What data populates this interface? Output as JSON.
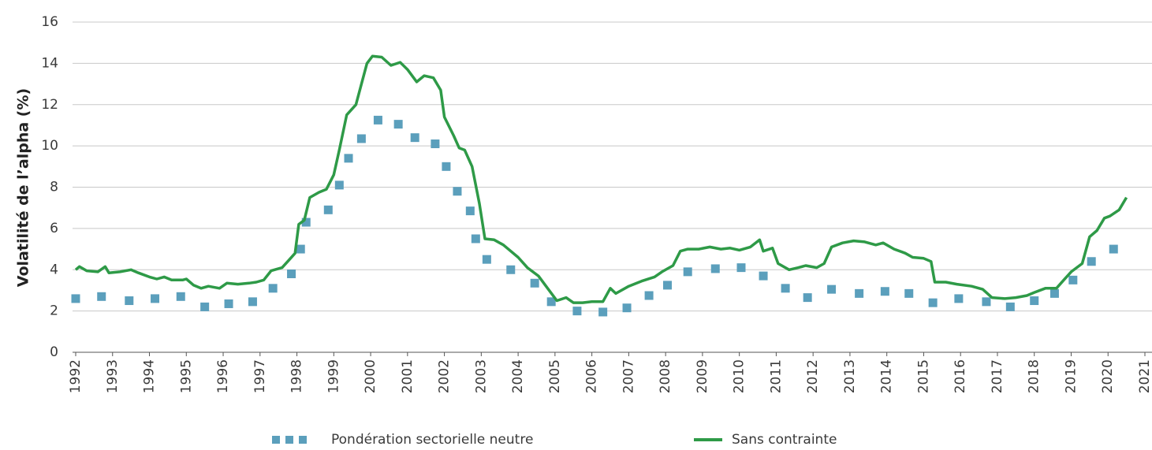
{
  "chart_data": {
    "type": "line",
    "y_label": "Volatilité de l’alpha (%)",
    "xlim": [
      1992,
      2021
    ],
    "xticks": [
      1992,
      1993,
      1994,
      1995,
      1996,
      1997,
      1998,
      1999,
      2000,
      2001,
      2002,
      2003,
      2004,
      2005,
      2006,
      2007,
      2008,
      2009,
      2010,
      2011,
      2012,
      2013,
      2014,
      2015,
      2016,
      2017,
      2018,
      2019,
      2020,
      2021
    ],
    "ylim": [
      0,
      16
    ],
    "yticks": [
      0,
      2,
      4,
      6,
      8,
      10,
      12,
      14,
      16
    ],
    "grid": true,
    "legend": "bottom",
    "series": [
      {
        "name": "Pondération sectorielle neutre",
        "color": "#5b9fbc",
        "mark": "square",
        "x": [
          1992.0,
          1992.7,
          1993.45,
          1994.15,
          1994.85,
          1995.5,
          1996.15,
          1996.8,
          1997.35,
          1997.85,
          1998.1,
          1998.25,
          1998.85,
          1999.15,
          1999.4,
          1999.75,
          2000.2,
          2000.75,
          2001.2,
          2001.75,
          2002.05,
          2002.35,
          2002.7,
          2002.85,
          2003.15,
          2003.8,
          2004.45,
          2004.9,
          2005.6,
          2006.3,
          2006.95,
          2007.55,
          2008.05,
          2008.6,
          2009.35,
          2010.05,
          2010.65,
          2011.25,
          2011.85,
          2012.5,
          2013.25,
          2013.95,
          2014.6,
          2015.25,
          2015.95,
          2016.7,
          2017.35,
          2018.0,
          2018.55,
          2019.05,
          2019.55,
          2020.15
        ],
        "values": [
          2.6,
          2.7,
          2.5,
          2.6,
          2.7,
          2.2,
          2.35,
          2.45,
          3.1,
          3.8,
          5.0,
          6.3,
          6.9,
          8.1,
          9.4,
          10.35,
          11.25,
          11.05,
          10.4,
          10.1,
          9.0,
          7.8,
          6.85,
          5.5,
          4.5,
          4.0,
          3.35,
          2.45,
          2.0,
          1.95,
          2.15,
          2.75,
          3.25,
          3.9,
          4.05,
          4.1,
          3.7,
          3.1,
          2.65,
          3.05,
          2.85,
          2.95,
          2.85,
          2.4,
          2.6,
          2.45,
          2.2,
          2.5,
          2.85,
          3.5,
          4.4,
          5.0
        ]
      },
      {
        "name": "Sans contrainte",
        "color": "#2e9a47",
        "mark": "line",
        "x": [
          1992.0,
          1992.1,
          1992.3,
          1992.6,
          1992.8,
          1992.9,
          1993.2,
          1993.5,
          1993.7,
          1994.0,
          1994.2,
          1994.4,
          1994.6,
          1994.9,
          1995.0,
          1995.2,
          1995.4,
          1995.6,
          1995.9,
          1996.1,
          1996.4,
          1996.7,
          1996.9,
          1997.1,
          1997.3,
          1997.6,
          1997.8,
          1997.95,
          1998.05,
          1998.2,
          1998.35,
          1998.6,
          1998.8,
          1999.0,
          1999.15,
          1999.35,
          1999.6,
          1999.75,
          1999.9,
          2000.05,
          2000.3,
          2000.55,
          2000.8,
          2001.0,
          2001.25,
          2001.45,
          2001.7,
          2001.9,
          2002.0,
          2002.25,
          2002.4,
          2002.55,
          2002.75,
          2002.95,
          2003.1,
          2003.35,
          2003.6,
          2003.8,
          2004.0,
          2004.25,
          2004.55,
          2004.8,
          2005.05,
          2005.3,
          2005.5,
          2005.75,
          2006.0,
          2006.3,
          2006.5,
          2006.65,
          2007.0,
          2007.35,
          2007.7,
          2007.9,
          2008.2,
          2008.4,
          2008.6,
          2008.9,
          2009.2,
          2009.5,
          2009.75,
          2010.0,
          2010.3,
          2010.55,
          2010.65,
          2010.9,
          2011.05,
          2011.35,
          2011.6,
          2011.8,
          2012.1,
          2012.3,
          2012.5,
          2012.8,
          2013.1,
          2013.4,
          2013.7,
          2013.9,
          2014.2,
          2014.5,
          2014.7,
          2015.0,
          2015.2,
          2015.3,
          2015.6,
          2015.9,
          2016.3,
          2016.6,
          2016.85,
          2017.2,
          2017.5,
          2017.8,
          2018.0,
          2018.3,
          2018.6,
          2018.8,
          2019.0,
          2019.3,
          2019.5,
          2019.7,
          2019.9,
          2020.05,
          2020.3,
          2020.5
        ],
        "values": [
          4.0,
          4.15,
          3.95,
          3.9,
          4.15,
          3.85,
          3.9,
          4.0,
          3.85,
          3.65,
          3.55,
          3.65,
          3.5,
          3.5,
          3.55,
          3.25,
          3.1,
          3.2,
          3.1,
          3.35,
          3.3,
          3.35,
          3.4,
          3.5,
          3.95,
          4.1,
          4.5,
          4.8,
          6.2,
          6.4,
          7.5,
          7.75,
          7.9,
          8.6,
          9.8,
          11.5,
          12.0,
          13.0,
          14.0,
          14.35,
          14.3,
          13.9,
          14.05,
          13.7,
          13.1,
          13.4,
          13.3,
          12.7,
          11.4,
          10.5,
          9.9,
          9.8,
          9.0,
          7.2,
          5.5,
          5.45,
          5.2,
          4.9,
          4.6,
          4.1,
          3.7,
          3.1,
          2.5,
          2.65,
          2.4,
          2.4,
          2.45,
          2.45,
          3.1,
          2.85,
          3.2,
          3.45,
          3.65,
          3.9,
          4.2,
          4.9,
          5.0,
          5.0,
          5.1,
          5.0,
          5.05,
          4.95,
          5.1,
          5.45,
          4.9,
          5.05,
          4.3,
          4.0,
          4.1,
          4.2,
          4.1,
          4.3,
          5.1,
          5.3,
          5.4,
          5.35,
          5.2,
          5.3,
          5.0,
          4.8,
          4.6,
          4.55,
          4.4,
          3.4,
          3.4,
          3.3,
          3.2,
          3.05,
          2.65,
          2.6,
          2.65,
          2.75,
          2.9,
          3.1,
          3.1,
          3.5,
          3.9,
          4.3,
          5.6,
          5.9,
          6.5,
          6.6,
          6.9,
          7.5
        ]
      }
    ]
  }
}
